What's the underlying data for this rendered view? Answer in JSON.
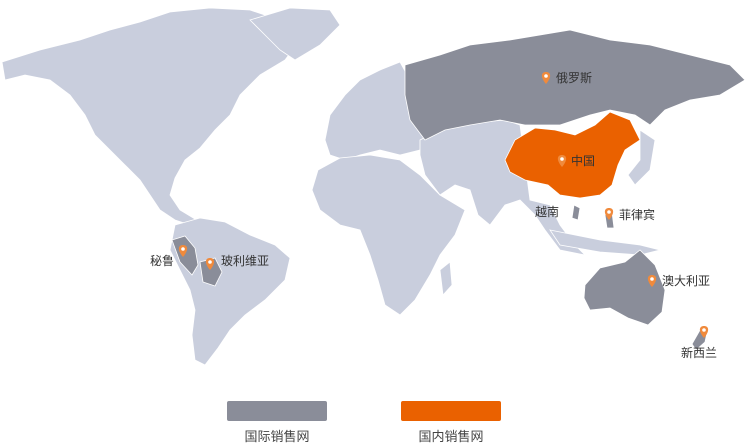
{
  "colors": {
    "land": "#c9cedd",
    "international": "#8a8d99",
    "domestic": "#ea6100",
    "marker": "#f08a3c"
  },
  "markers": [
    {
      "id": "russia",
      "label": "俄罗斯",
      "type": "international"
    },
    {
      "id": "china",
      "label": "中国",
      "type": "domestic"
    },
    {
      "id": "vietnam",
      "label": "越南",
      "type": "international"
    },
    {
      "id": "philippines",
      "label": "菲律宾",
      "type": "international"
    },
    {
      "id": "australia",
      "label": "澳大利亚",
      "type": "international"
    },
    {
      "id": "newzealand",
      "label": "新西兰",
      "type": "international"
    },
    {
      "id": "peru",
      "label": "秘鲁",
      "type": "international"
    },
    {
      "id": "bolivia",
      "label": "玻利维亚",
      "type": "international"
    }
  ],
  "legend": [
    {
      "label": "国际销售网",
      "color": "#8a8d99"
    },
    {
      "label": "国内销售网",
      "color": "#ea6100"
    }
  ]
}
